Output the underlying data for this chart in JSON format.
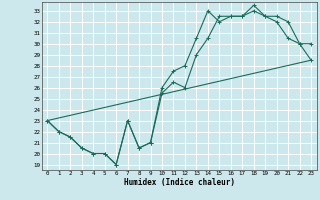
{
  "title": "",
  "xlabel": "Humidex (Indice chaleur)",
  "bg_color": "#cce8ec",
  "grid_color": "#ffffff",
  "line_color": "#1a6b5a",
  "xlim": [
    -0.5,
    23.5
  ],
  "ylim": [
    18.5,
    33.8
  ],
  "xticks": [
    0,
    1,
    2,
    3,
    4,
    5,
    6,
    7,
    8,
    9,
    10,
    11,
    12,
    13,
    14,
    15,
    16,
    17,
    18,
    19,
    20,
    21,
    22,
    23
  ],
  "yticks": [
    19,
    20,
    21,
    22,
    23,
    24,
    25,
    26,
    27,
    28,
    29,
    30,
    31,
    32,
    33
  ],
  "line1_x": [
    0,
    1,
    2,
    3,
    4,
    5,
    6,
    7,
    8,
    9,
    10,
    11,
    12,
    13,
    14,
    15,
    16,
    17,
    18,
    19,
    20,
    21,
    22,
    23
  ],
  "line1_y": [
    23.0,
    22.0,
    21.5,
    20.5,
    20.0,
    20.0,
    19.0,
    23.0,
    20.5,
    21.0,
    25.5,
    26.5,
    26.0,
    29.0,
    30.5,
    32.5,
    32.5,
    32.5,
    33.0,
    32.5,
    32.5,
    32.0,
    30.0,
    30.0
  ],
  "line2_x": [
    0,
    1,
    2,
    3,
    4,
    5,
    6,
    7,
    8,
    9,
    10,
    11,
    12,
    13,
    14,
    15,
    16,
    17,
    18,
    19,
    20,
    21,
    22,
    23
  ],
  "line2_y": [
    23.0,
    22.0,
    21.5,
    20.5,
    20.0,
    20.0,
    19.0,
    23.0,
    20.5,
    21.0,
    26.0,
    27.5,
    28.0,
    30.5,
    33.0,
    32.0,
    32.5,
    32.5,
    33.5,
    32.5,
    32.0,
    30.5,
    30.0,
    28.5
  ],
  "line3_x": [
    0,
    23
  ],
  "line3_y": [
    23.0,
    28.5
  ]
}
